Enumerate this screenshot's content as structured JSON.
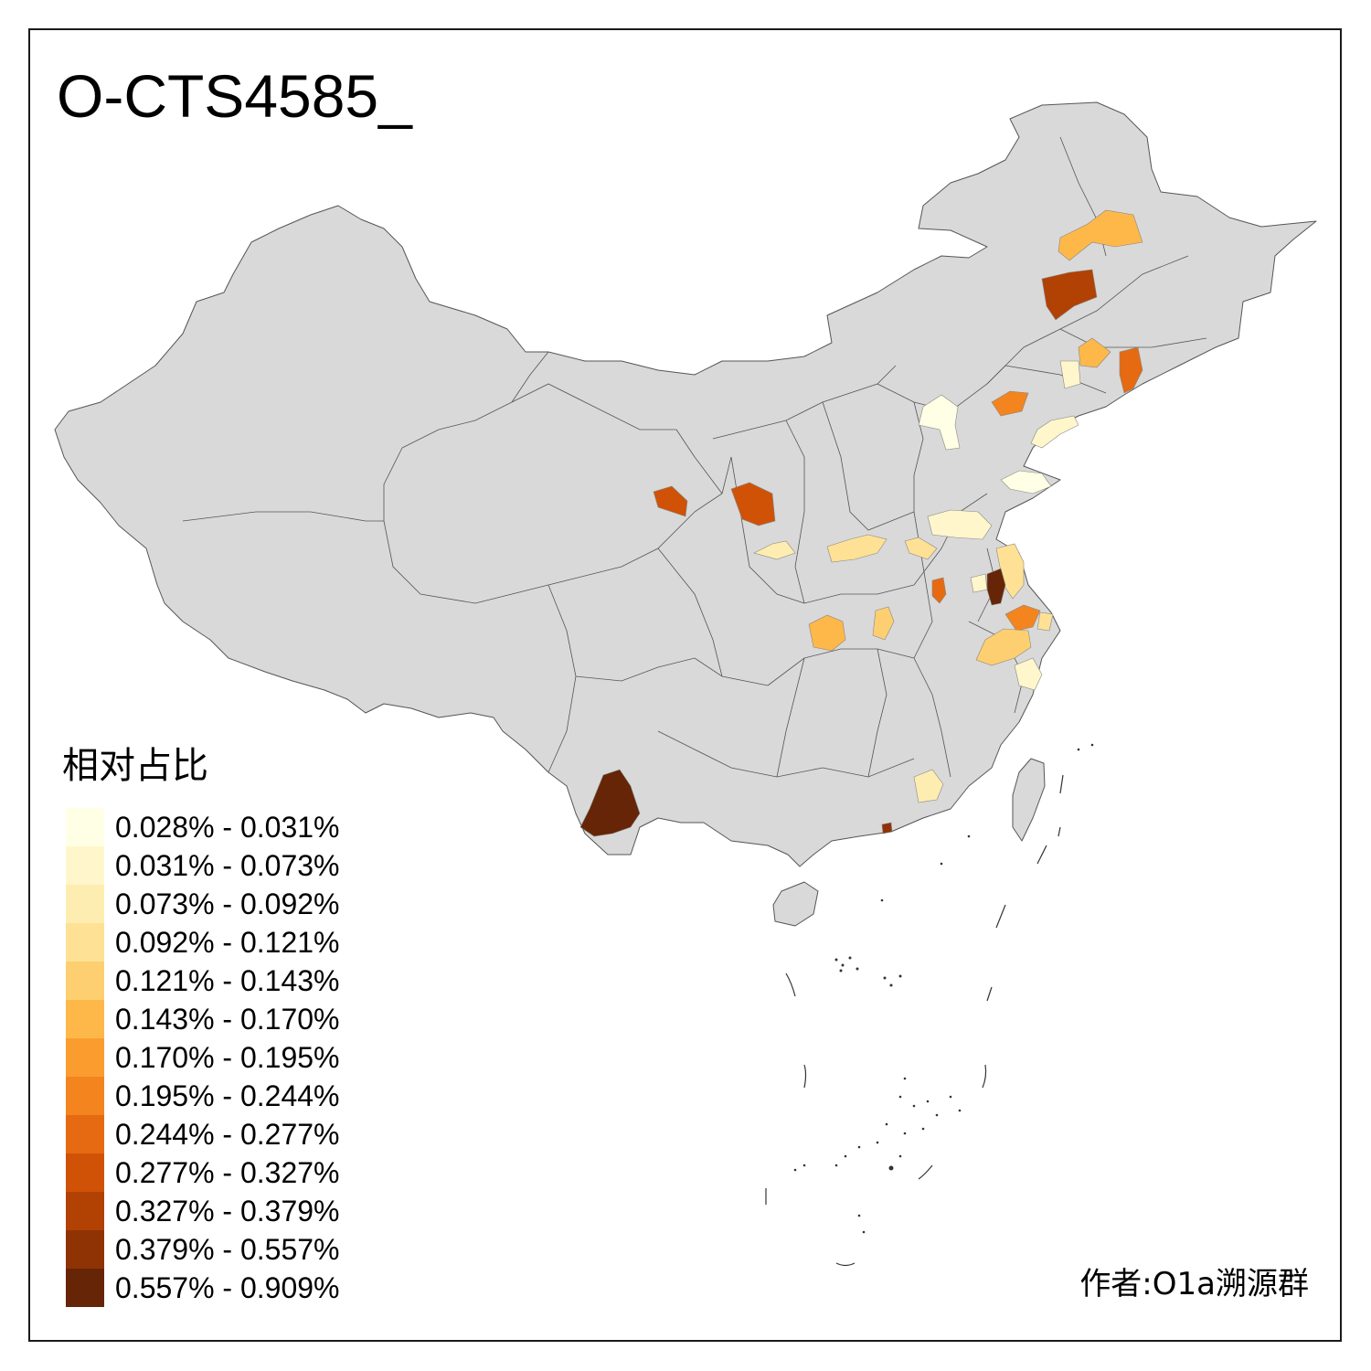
{
  "title": "O-CTS4585_",
  "legend": {
    "title": "相对占比",
    "items": [
      {
        "label": "0.028% - 0.031%",
        "color": "#FFFFE5"
      },
      {
        "label": "0.031% - 0.073%",
        "color": "#FFF6CC"
      },
      {
        "label": "0.073% - 0.092%",
        "color": "#FEEDB0"
      },
      {
        "label": "0.092% - 0.121%",
        "color": "#FEE195"
      },
      {
        "label": "0.121% - 0.143%",
        "color": "#FECF70"
      },
      {
        "label": "0.143% - 0.170%",
        "color": "#FEB849"
      },
      {
        "label": "0.170% - 0.195%",
        "color": "#FB9C2E"
      },
      {
        "label": "0.195% - 0.244%",
        "color": "#F3841E"
      },
      {
        "label": "0.244% - 0.277%",
        "color": "#E56A11"
      },
      {
        "label": "0.277% - 0.327%",
        "color": "#CF5207"
      },
      {
        "label": "0.327% - 0.379%",
        "color": "#B24104"
      },
      {
        "label": "0.379% - 0.557%",
        "color": "#8F3305"
      },
      {
        "label": "0.557% - 0.909%",
        "color": "#662506"
      }
    ]
  },
  "author": "作者:O1a溯源群",
  "map": {
    "base_color": "#D9D9D9",
    "border_color": "#555555"
  }
}
